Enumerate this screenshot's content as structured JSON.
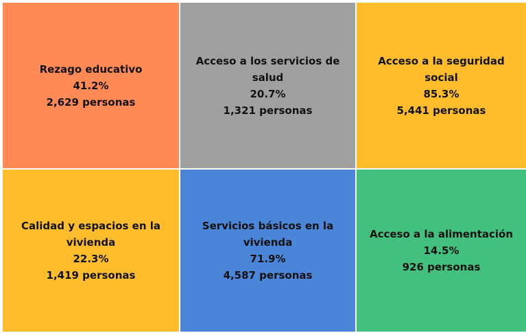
{
  "tiles": [
    {
      "label": "Rezago educativo",
      "percent": "41.2%",
      "people": "2,629 personas",
      "color": "#ff8a55"
    },
    {
      "label": "Acceso a los servicios de salud",
      "percent": "20.7%",
      "people": "1,321 personas",
      "color": "#a0a0a0"
    },
    {
      "label": "Acceso a la seguridad social",
      "percent": "85.3%",
      "people": "5,441 personas",
      "color": "#ffbd2e"
    },
    {
      "label": "Calidad y espacios en la vivienda",
      "percent": "22.3%",
      "people": "1,419 personas",
      "color": "#ffbd2e"
    },
    {
      "label": "Servicios básicos en la vivienda",
      "percent": "71.9%",
      "people": "4,587 personas",
      "color": "#4b85d8"
    },
    {
      "label": "Acceso a la alimentación",
      "percent": "14.5%",
      "people": "926 personas",
      "color": "#44c07e"
    }
  ]
}
